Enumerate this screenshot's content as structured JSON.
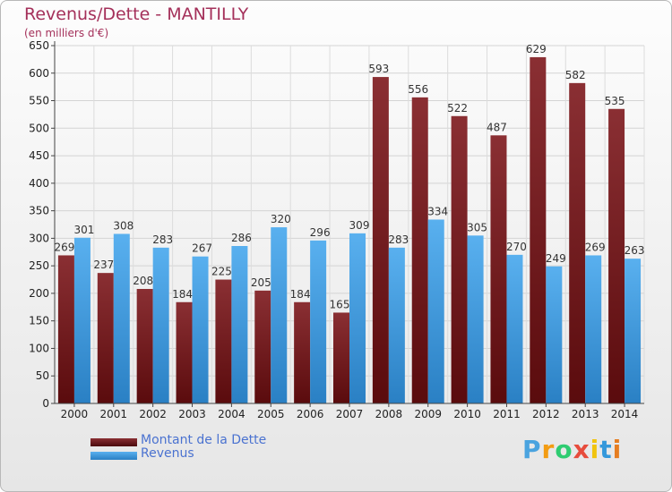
{
  "title": "Revenus/Dette - MANTILLY",
  "subtitle": "(en milliers d'€)",
  "logo": {
    "letters": [
      "P",
      "r",
      "o",
      "x",
      "i",
      "t",
      "i"
    ],
    "colors": [
      "#4aa3df",
      "#f39c12",
      "#2ecc71",
      "#e74c3c",
      "#f1c40f",
      "#3498db",
      "#e67e22"
    ]
  },
  "chart_data": {
    "type": "bar",
    "categories": [
      "2000",
      "2001",
      "2002",
      "2003",
      "2004",
      "2005",
      "2006",
      "2007",
      "2008",
      "2009",
      "2010",
      "2011",
      "2012",
      "2013",
      "2014"
    ],
    "series": [
      {
        "name": "Montant de la Dette",
        "color": "#7a1f22",
        "values": [
          269,
          237,
          208,
          184,
          225,
          205,
          184,
          165,
          593,
          556,
          522,
          487,
          629,
          582,
          535
        ]
      },
      {
        "name": "Revenus",
        "color": "#3a96dc",
        "values": [
          301,
          308,
          283,
          267,
          286,
          320,
          296,
          309,
          283,
          334,
          305,
          270,
          249,
          269,
          263
        ]
      }
    ],
    "yticks": [
      0,
      50,
      100,
      150,
      200,
      250,
      300,
      350,
      400,
      450,
      500,
      550,
      600,
      650
    ],
    "ylim": [
      0,
      650
    ],
    "grid": true,
    "legend": "bottom-left"
  }
}
